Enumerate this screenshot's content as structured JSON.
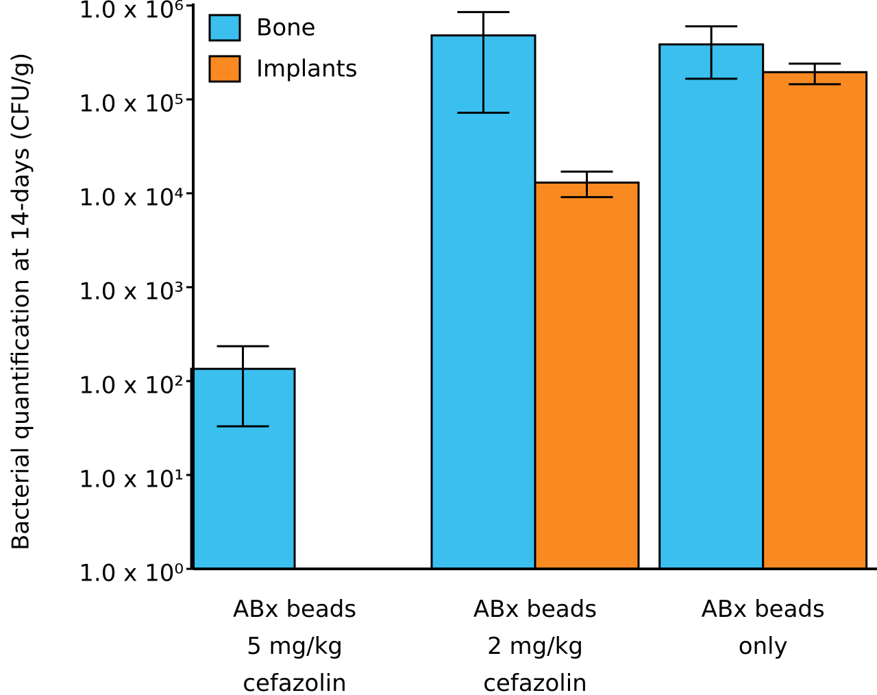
{
  "chart_data": {
    "type": "bar",
    "y_label": "Bacterial quantification at 14-days (CFU/g)",
    "log_scale": true,
    "legend": "upper left",
    "categories": [
      "ABx beads\n5 mg/kg\ncefazolin",
      "ABx beads\n2 mg/kg\ncefazolin",
      "ABx beads\nonly"
    ],
    "series": [
      {
        "name": "Bone",
        "color": "#3bbfef",
        "values": [
          135,
          480000,
          385000
        ],
        "upper": [
          235,
          850000,
          600000
        ],
        "lower": [
          33,
          72000,
          166000
        ]
      },
      {
        "name": "Implants",
        "color": "#f98a22",
        "values": [
          null,
          13000,
          195000
        ],
        "upper": [
          null,
          17000,
          240000
        ],
        "lower": [
          null,
          9100,
          145000
        ]
      }
    ],
    "ylim": [
      1,
      1000000
    ],
    "yticks": [
      {
        "value": 1,
        "label": "1.0 x 10⁰"
      },
      {
        "value": 10,
        "label": "1.0 x 10¹"
      },
      {
        "value": 100,
        "label": "1.0 x 10²"
      },
      {
        "value": 1000,
        "label": "1.0 x 10³"
      },
      {
        "value": 10000,
        "label": "1.0 x 10⁴"
      },
      {
        "value": 100000,
        "label": "1.0 x 10⁵"
      },
      {
        "value": 1000000,
        "label": "1.0 x 10⁶"
      }
    ]
  }
}
